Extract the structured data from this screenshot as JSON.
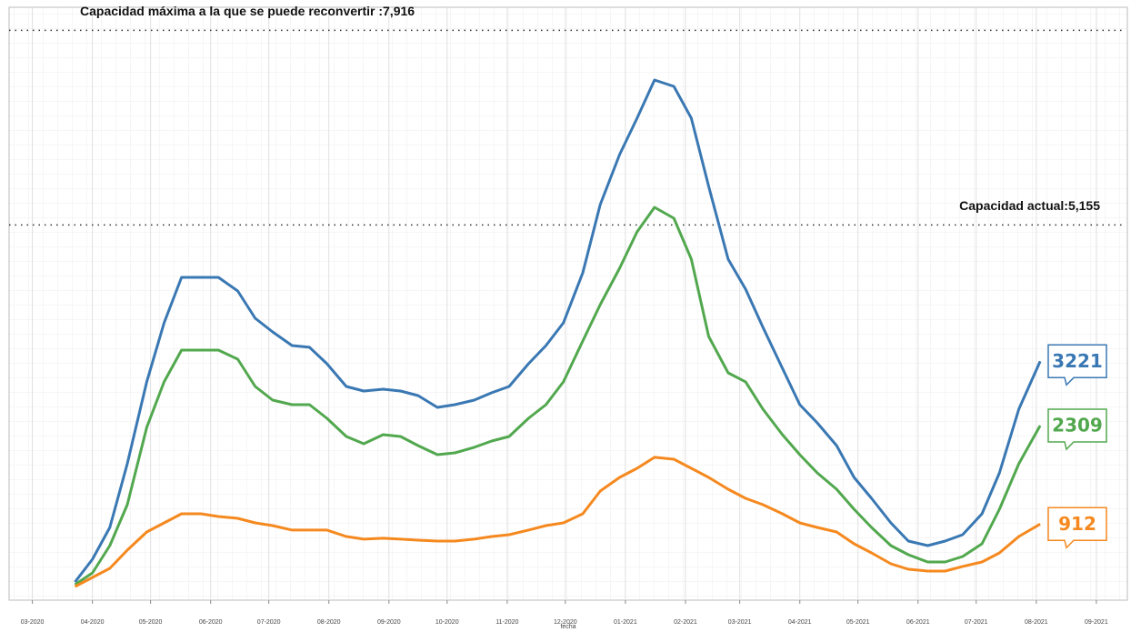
{
  "chart_data": {
    "type": "line",
    "x_label": "fecha",
    "x": [
      "2020-03-23",
      "2020-04-01",
      "2020-04-10",
      "2020-04-19",
      "2020-04-29",
      "2020-05-08",
      "2020-05-17",
      "2020-05-27",
      "2020-06-05",
      "2020-06-15",
      "2020-06-24",
      "2020-07-03",
      "2020-07-13",
      "2020-07-22",
      "2020-07-31",
      "2020-08-10",
      "2020-08-19",
      "2020-08-29",
      "2020-09-07",
      "2020-09-16",
      "2020-09-26",
      "2020-10-05",
      "2020-10-15",
      "2020-10-24",
      "2020-11-02",
      "2020-11-12",
      "2020-11-21",
      "2020-11-30",
      "2020-12-10",
      "2020-12-19",
      "2020-12-29",
      "2021-01-07",
      "2021-01-16",
      "2021-01-26",
      "2021-02-04",
      "2021-02-13",
      "2021-02-23",
      "2021-03-04",
      "2021-03-13",
      "2021-03-23",
      "2021-04-01",
      "2021-04-10",
      "2021-04-20",
      "2021-04-29",
      "2021-05-08",
      "2021-05-18",
      "2021-05-27",
      "2021-06-06",
      "2021-06-15",
      "2021-06-24",
      "2021-07-04",
      "2021-07-13",
      "2021-07-23",
      "2021-08-03"
    ],
    "series": [
      {
        "color": "#3a78b3",
        "values": [
          90,
          413,
          864,
          1767,
          2929,
          3767,
          4412,
          4412,
          4412,
          4218,
          3831,
          3638,
          3444,
          3419,
          3186,
          2864,
          2799,
          2825,
          2799,
          2735,
          2567,
          2606,
          2670,
          2774,
          2864,
          3186,
          3444,
          3767,
          4476,
          5444,
          6153,
          6669,
          7211,
          7121,
          6669,
          5702,
          4670,
          4244,
          3702,
          3122,
          2606,
          2348,
          2025,
          1574,
          1277,
          929,
          671,
          606,
          671,
          761,
          1058,
          1638,
          2541,
          3221
        ]
      },
      {
        "color": "#52a84e",
        "values": [
          52,
          219,
          606,
          1187,
          2283,
          2929,
          3380,
          3380,
          3380,
          3251,
          2864,
          2670,
          2606,
          2606,
          2412,
          2154,
          2051,
          2180,
          2154,
          2025,
          1896,
          1922,
          2000,
          2090,
          2154,
          2412,
          2606,
          2929,
          3509,
          4025,
          4541,
          5057,
          5405,
          5250,
          4670,
          3573,
          3057,
          2929,
          2541,
          2180,
          1896,
          1638,
          1406,
          1122,
          864,
          606,
          477,
          374,
          374,
          451,
          632,
          1122,
          1767,
          2309
        ]
      },
      {
        "color": "#f5891f",
        "values": [
          26,
          155,
          284,
          542,
          800,
          929,
          1058,
          1058,
          1019,
          993,
          929,
          890,
          826,
          826,
          826,
          735,
          697,
          710,
          697,
          684,
          671,
          671,
          697,
          735,
          761,
          826,
          890,
          929,
          1058,
          1380,
          1574,
          1703,
          1858,
          1832,
          1703,
          1574,
          1406,
          1277,
          1187,
          1058,
          929,
          864,
          800,
          632,
          503,
          348,
          271,
          245,
          245,
          310,
          374,
          503,
          735,
          912
        ]
      }
    ],
    "annotations": [
      {
        "text": "Capacidad máxima a la que se puede reconvertir :7,916",
        "value": 7916
      },
      {
        "text": "Capacidad actual:5,155",
        "value": 5155
      }
    ],
    "xlim": [
      "2020-02-18",
      "2021-09-17"
    ],
    "xticks": [
      {
        "value": "2020-03",
        "label": "03-2020"
      },
      {
        "value": "2020-04",
        "label": "04-2020"
      },
      {
        "value": "2020-05",
        "label": "05-2020"
      },
      {
        "value": "2020-06",
        "label": "06-2020"
      },
      {
        "value": "2020-07",
        "label": "07-2020"
      },
      {
        "value": "2020-08",
        "label": "08-2020"
      },
      {
        "value": "2020-09",
        "label": "09-2020"
      },
      {
        "value": "2020-10",
        "label": "10-2020"
      },
      {
        "value": "2020-11",
        "label": "11-2020"
      },
      {
        "value": "2020-12",
        "label": "12-2020"
      },
      {
        "value": "2021-01",
        "label": "01-2021"
      },
      {
        "value": "2021-02",
        "label": "02-2021"
      },
      {
        "value": "2021-03",
        "label": "03-2021"
      },
      {
        "value": "2021-04",
        "label": "04-2021"
      },
      {
        "value": "2021-05",
        "label": "05-2021"
      },
      {
        "value": "2021-06",
        "label": "06-2021"
      },
      {
        "value": "2021-07",
        "label": "07-2021"
      },
      {
        "value": "2021-08",
        "label": "08-2021"
      },
      {
        "value": "2021-09",
        "label": "09-2021"
      }
    ],
    "ylim": [
      -168,
      8243
    ],
    "grid": true
  }
}
